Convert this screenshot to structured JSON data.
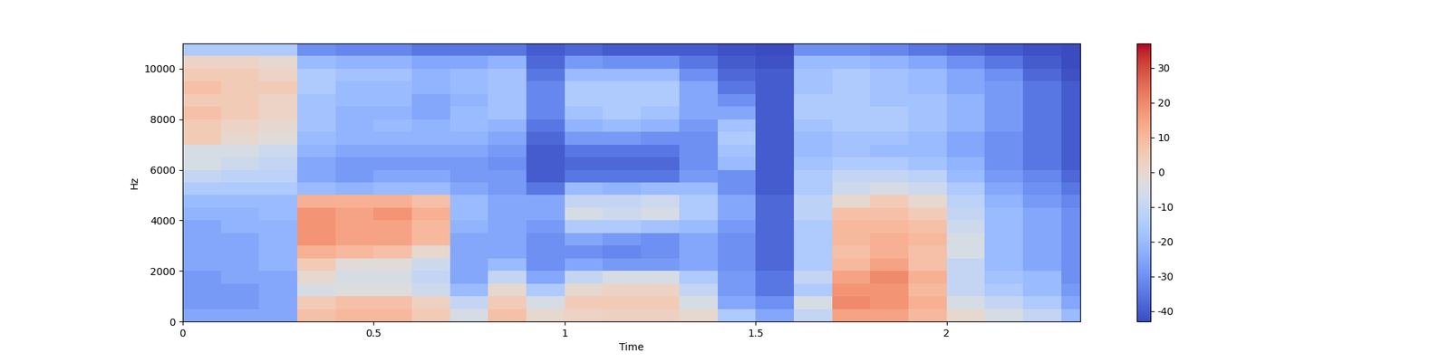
{
  "chart_data": {
    "type": "heatmap",
    "xlabel": "Time",
    "ylabel": "Hz",
    "x": [
      0.05,
      0.15,
      0.25,
      0.35,
      0.45,
      0.55,
      0.65,
      0.75,
      0.85,
      0.95,
      1.05,
      1.15,
      1.25,
      1.35,
      1.45,
      1.55,
      1.65,
      1.75,
      1.85,
      1.95,
      2.05,
      2.15,
      2.25,
      2.35
    ],
    "y": [
      250,
      750,
      1250,
      1750,
      2250,
      2750,
      3250,
      3750,
      4250,
      4750,
      5250,
      5750,
      6250,
      6750,
      7250,
      7750,
      8250,
      8750,
      9250,
      9750,
      10250,
      10750
    ],
    "xlim": [
      0,
      2.35
    ],
    "ylim": [
      0,
      11000
    ],
    "xticks": [
      0,
      0.5,
      1,
      1.5,
      2
    ],
    "yticks": [
      0,
      2000,
      4000,
      6000,
      8000,
      10000
    ],
    "colorbar_range": [
      -43,
      37
    ],
    "colorbar_ticks": [
      -40,
      -30,
      -20,
      -10,
      0,
      10,
      20,
      30
    ],
    "color": "coolwarm",
    "cells": [
      [
        -25,
        -25,
        -25,
        8,
        10,
        10,
        5,
        -5,
        8,
        0,
        2,
        3,
        3,
        0,
        -15,
        -25,
        -10,
        15,
        15,
        10,
        0,
        -5,
        -10,
        -20
      ],
      [
        -28,
        -28,
        -25,
        5,
        8,
        8,
        3,
        -10,
        5,
        -5,
        5,
        5,
        5,
        -5,
        -25,
        -30,
        -5,
        20,
        18,
        12,
        -5,
        -10,
        -15,
        -25
      ],
      [
        -28,
        -28,
        -25,
        -5,
        -3,
        -3,
        -8,
        -20,
        0,
        -15,
        0,
        2,
        2,
        -10,
        -28,
        -35,
        -15,
        18,
        18,
        10,
        -10,
        -15,
        -20,
        -28
      ],
      [
        -28,
        -25,
        -25,
        0,
        -5,
        -5,
        -10,
        -25,
        -10,
        -25,
        -10,
        -5,
        -5,
        -15,
        -28,
        -35,
        -10,
        15,
        20,
        12,
        -10,
        -18,
        -20,
        -30
      ],
      [
        -25,
        -25,
        -22,
        5,
        -2,
        -2,
        -8,
        -25,
        -20,
        -30,
        -25,
        -28,
        -28,
        -25,
        -30,
        -38,
        -15,
        10,
        15,
        8,
        -10,
        -20,
        -25,
        -30
      ],
      [
        -25,
        -25,
        -22,
        12,
        10,
        8,
        0,
        -25,
        -25,
        -30,
        -30,
        -32,
        -30,
        -25,
        -30,
        -38,
        -15,
        8,
        12,
        8,
        -5,
        -20,
        -25,
        -30
      ],
      [
        -25,
        -25,
        -22,
        18,
        15,
        15,
        10,
        -25,
        -25,
        -30,
        -25,
        -28,
        -30,
        -25,
        -30,
        -38,
        -15,
        10,
        12,
        10,
        -5,
        -20,
        -25,
        -30
      ],
      [
        -25,
        -22,
        -22,
        18,
        15,
        15,
        10,
        -22,
        -25,
        -28,
        -15,
        -15,
        -18,
        -20,
        -28,
        -38,
        -15,
        10,
        10,
        8,
        -8,
        -20,
        -25,
        -30
      ],
      [
        -22,
        -22,
        -20,
        18,
        15,
        18,
        12,
        -20,
        -25,
        -25,
        -5,
        -8,
        -5,
        -15,
        -25,
        -38,
        -12,
        8,
        8,
        5,
        -10,
        -20,
        -25,
        -30
      ],
      [
        -20,
        -20,
        -20,
        12,
        12,
        12,
        8,
        -20,
        -25,
        -25,
        -10,
        -10,
        -8,
        -15,
        -25,
        -38,
        -12,
        0,
        5,
        0,
        -12,
        -22,
        -28,
        -32
      ],
      [
        -15,
        -15,
        -15,
        -20,
        -22,
        -20,
        -20,
        -25,
        -28,
        -35,
        -20,
        -22,
        -20,
        -20,
        -30,
        -40,
        -15,
        -8,
        -5,
        -8,
        -15,
        -25,
        -30,
        -35
      ],
      [
        -10,
        -12,
        -12,
        -25,
        -28,
        -25,
        -25,
        -28,
        -28,
        -40,
        -35,
        -35,
        -35,
        -28,
        -30,
        -40,
        -15,
        -10,
        -10,
        -12,
        -20,
        -28,
        -32,
        -38
      ],
      [
        -5,
        -8,
        -10,
        -25,
        -28,
        -28,
        -28,
        -28,
        -30,
        -40,
        -38,
        -38,
        -38,
        -30,
        -20,
        -40,
        -18,
        -15,
        -15,
        -18,
        -22,
        -30,
        -35,
        -40
      ],
      [
        -5,
        -5,
        -8,
        -22,
        -25,
        -25,
        -25,
        -25,
        -28,
        -40,
        -35,
        -35,
        -35,
        -30,
        -18,
        -40,
        -20,
        -18,
        -20,
        -20,
        -25,
        -30,
        -35,
        -40
      ],
      [
        5,
        0,
        -2,
        -20,
        -22,
        -22,
        -22,
        -22,
        -25,
        -38,
        -28,
        -28,
        -30,
        -30,
        -15,
        -40,
        -20,
        -18,
        -18,
        -20,
        -25,
        -30,
        -35,
        -40
      ],
      [
        5,
        2,
        0,
        -18,
        -22,
        -20,
        -22,
        -20,
        -22,
        -35,
        -22,
        -20,
        -22,
        -28,
        -18,
        -40,
        -18,
        -15,
        -15,
        -18,
        -22,
        -28,
        -35,
        -40
      ],
      [
        8,
        5,
        2,
        -18,
        -22,
        -22,
        -25,
        -20,
        -18,
        -32,
        -18,
        -15,
        -18,
        -25,
        -25,
        -40,
        -15,
        -15,
        -15,
        -18,
        -22,
        -28,
        -35,
        -40
      ],
      [
        5,
        5,
        2,
        -18,
        -20,
        -20,
        -25,
        -22,
        -18,
        -32,
        -15,
        -15,
        -15,
        -25,
        -30,
        -40,
        -15,
        -15,
        -18,
        -18,
        -22,
        -28,
        -35,
        -40
      ],
      [
        8,
        5,
        5,
        -15,
        -20,
        -20,
        -22,
        -20,
        -18,
        -32,
        -15,
        -15,
        -15,
        -25,
        -35,
        -40,
        -18,
        -15,
        -18,
        -20,
        -25,
        -28,
        -35,
        -40
      ],
      [
        5,
        5,
        2,
        -15,
        -18,
        -18,
        -22,
        -20,
        -18,
        -35,
        -20,
        -20,
        -20,
        -30,
        -38,
        -40,
        -18,
        -15,
        -18,
        -20,
        -25,
        -30,
        -38,
        -42
      ],
      [
        2,
        2,
        0,
        -20,
        -22,
        -22,
        -25,
        -25,
        -22,
        -38,
        -28,
        -30,
        -30,
        -35,
        -40,
        -42,
        -20,
        -20,
        -22,
        -25,
        -30,
        -35,
        -40,
        -43
      ],
      [
        -15,
        -15,
        -15,
        -30,
        -32,
        -32,
        -35,
        -35,
        -35,
        -40,
        -38,
        -40,
        -40,
        -40,
        -42,
        -43,
        -30,
        -30,
        -32,
        -35,
        -38,
        -40,
        -42,
        -43
      ]
    ]
  }
}
